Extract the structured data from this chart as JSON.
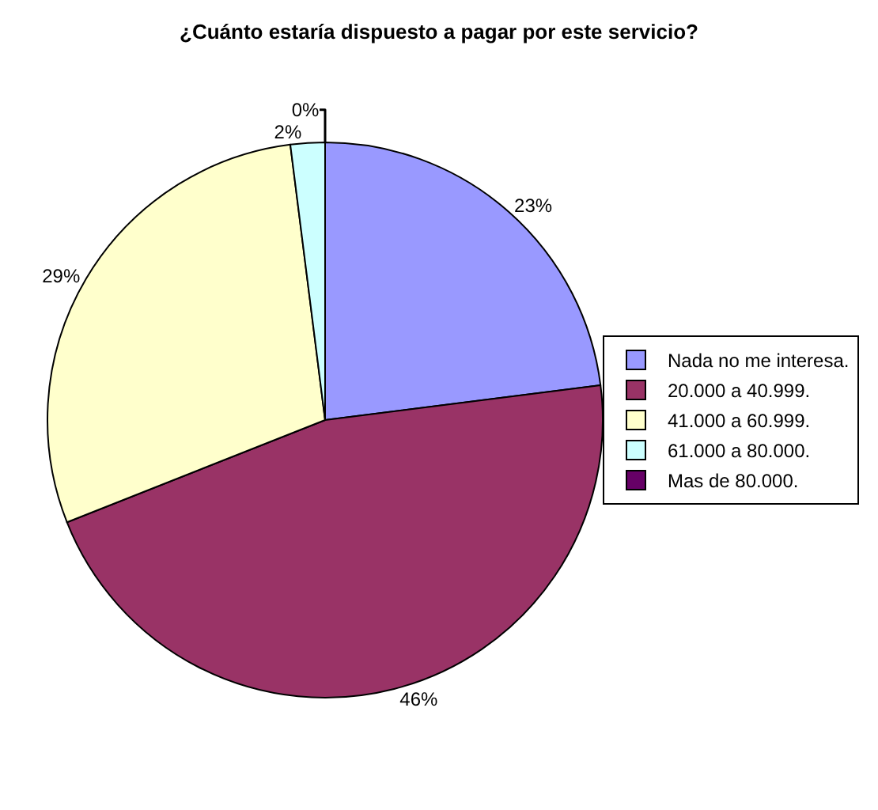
{
  "chart_data": {
    "type": "pie",
    "title": "¿Cuánto estaría dispuesto a pagar por este servicio?",
    "categories": [
      "Nada no me interesa.",
      "20.000 a 40.999.",
      "41.000 a 60.999.",
      "61.000 a 80.000.",
      "Mas de 80.000."
    ],
    "values": [
      23,
      46,
      29,
      2,
      0
    ],
    "value_labels": [
      "23%",
      "46%",
      "29%",
      "2%",
      "0%"
    ],
    "colors": [
      "#9999ff",
      "#993366",
      "#ffffcc",
      "#ccffff",
      "#660066"
    ],
    "legend": "right"
  }
}
